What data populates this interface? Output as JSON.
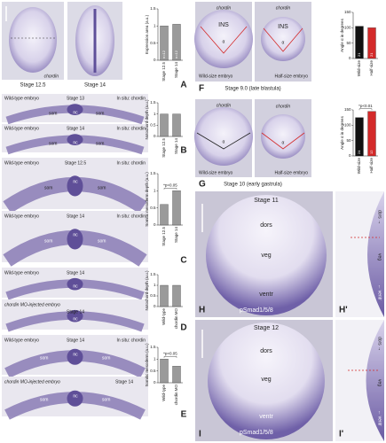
{
  "panels": [
    {
      "letter": "A",
      "texts": [
        "chordin",
        "Stage 12.5",
        "Stage 14"
      ],
      "chart": {
        "type": "bar",
        "ylabel": "Expression area (a.u.)",
        "categories": [
          "Stage 12.5",
          "Stage 14"
        ],
        "values": [
          1,
          1.05
        ],
        "bar_labels": [
          "n=12",
          "n=12"
        ],
        "ylim": [
          0,
          1.5
        ],
        "yticks": [
          0,
          0.5,
          1,
          1.5
        ],
        "colors": [
          "#9a9a9a",
          "#9a9a9a"
        ]
      }
    },
    {
      "letter": "B",
      "texts": [
        "Wild-type embryo",
        "Stage 13",
        "In situ: chordin",
        "som",
        "nc",
        "som",
        "Wild-type embryo",
        "Stage 14",
        "In situ: chordin",
        "som",
        "nc",
        "som"
      ],
      "chart": {
        "type": "bar",
        "ylabel": "Notochord depth (a.u.)",
        "categories": [
          "Stage 12.5",
          "Stage 14"
        ],
        "values": [
          1,
          1
        ],
        "ylim": [
          0,
          1.5
        ],
        "yticks": [
          0,
          0.5,
          1,
          1.5
        ],
        "colors": [
          "#9a9a9a",
          "#9a9a9a"
        ]
      }
    },
    {
      "letter": "C",
      "texts": [
        "Wild-type embryo",
        "Stage 12.5",
        "In situ: chordin",
        "som",
        "nc",
        "som",
        "Wild-type embryo",
        "Stage 14",
        "In situ: chordin",
        "som",
        "nc",
        "som"
      ],
      "chart": {
        "type": "bar",
        "ylabel": "Somitic mesoderm depth (a.u.)",
        "categories": [
          "Stage 12.5",
          "Stage 14"
        ],
        "values": [
          0.6,
          1
        ],
        "annotation": "*p<0.05",
        "ylim": [
          0,
          1.5
        ],
        "yticks": [
          0,
          0.5,
          1,
          1.5
        ],
        "colors": [
          "#9a9a9a",
          "#9a9a9a"
        ]
      }
    },
    {
      "letter": "D",
      "texts": [
        "Wild-type embryo",
        "Stage 14",
        "nc",
        "chordin MO-injected embryo",
        "Stage 14",
        "nc"
      ],
      "chart": {
        "type": "bar",
        "ylabel": "Notochord depth (a.u.)",
        "categories": [
          "Wild-type",
          "chordin MO"
        ],
        "values": [
          1,
          1
        ],
        "ylim": [
          0,
          1.5
        ],
        "yticks": [
          0,
          0.5,
          1,
          1.5
        ],
        "colors": [
          "#9a9a9a",
          "#9a9a9a"
        ]
      }
    },
    {
      "letter": "E",
      "texts": [
        "Wild-type embryo",
        "Stage 14",
        "In situ: chordin",
        "som",
        "nc",
        "som",
        "chordin MO-injected embryo",
        "Stage 14",
        "som",
        "nc",
        "som"
      ],
      "chart": {
        "type": "bar",
        "ylabel": "Somitic mesoderm (a.u.)",
        "categories": [
          "Wild-type",
          "chordin MO"
        ],
        "values": [
          1,
          0.7
        ],
        "annotation": "*p<0.05",
        "ylim": [
          0,
          1.5
        ],
        "yticks": [
          0,
          0.5,
          1,
          1.5
        ],
        "colors": [
          "#9a9a9a",
          "#9a9a9a"
        ]
      }
    },
    {
      "letter": "F",
      "texts": [
        "chordin",
        "INS",
        "α",
        "Wild-size embryo",
        "chordin",
        "INS",
        "α",
        "Half-size embryo"
      ],
      "caption": "Stage 9.0 (late blastula)",
      "chart": {
        "type": "bar",
        "ylabel": "Angle α in degrees",
        "categories": [
          "Wild-size",
          "Half-size"
        ],
        "values": [
          105,
          100
        ],
        "bar_labels": [
          "21",
          "21"
        ],
        "ylim": [
          0,
          150
        ],
        "yticks": [
          0,
          50,
          100,
          150
        ],
        "colors": [
          "#111111",
          "#d42a2a"
        ]
      }
    },
    {
      "letter": "G",
      "texts": [
        "chordin",
        "α",
        "Wild-size embryo",
        "chordin",
        "α",
        "Half-size embryo"
      ],
      "caption": "Stage 10 (early gastrula)",
      "chart": {
        "type": "bar",
        "ylabel": "Angle α in degrees",
        "categories": [
          "Wild-size",
          "Half-size"
        ],
        "values": [
          125,
          145
        ],
        "bar_labels": [
          "24",
          "12"
        ],
        "annotation": "*p<0.01",
        "ylim": [
          0,
          150
        ],
        "yticks": [
          0,
          50,
          100,
          150
        ],
        "colors": [
          "#111111",
          "#d42a2a"
        ]
      }
    },
    {
      "letter": "H",
      "texts": [
        "Stage 11",
        "dors",
        "veg",
        "ventr",
        "pSmad1/5/8"
      ],
      "prime": {
        "letter": "H'",
        "texts": [
          "dors →",
          "veg",
          "← ventr"
        ]
      }
    },
    {
      "letter": "I",
      "texts": [
        "Stage 12",
        "dors",
        "veg",
        "ventr",
        "pSmad1/5/8"
      ],
      "prime": {
        "letter": "I'",
        "texts": [
          "dors →",
          "veg",
          "← ventr"
        ]
      }
    }
  ]
}
